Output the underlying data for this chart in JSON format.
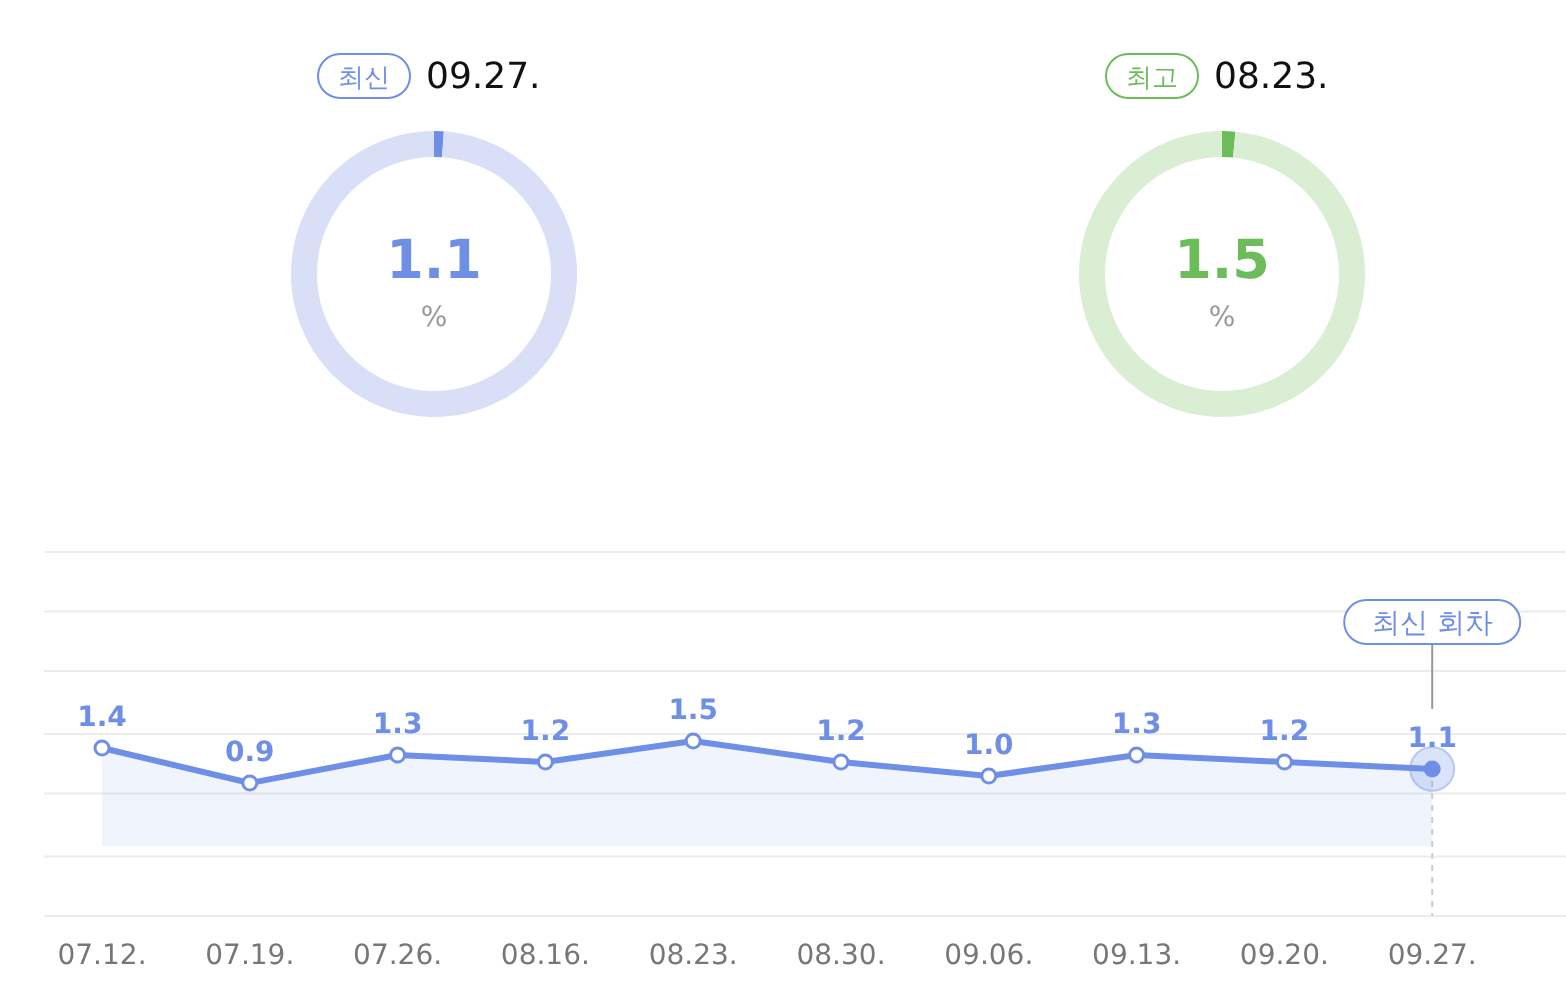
{
  "chart_data": [
    {
      "type": "donut",
      "subtitle": "최신",
      "title": "09.27.",
      "categories": [
        null,
        null
      ],
      "values": [
        1.1,
        98.9
      ],
      "colors": [
        "#6f8fe6",
        "#d8dff7"
      ],
      "value_labels": [
        "1.1",
        null
      ],
      "annotations": [
        "%"
      ]
    },
    {
      "type": "donut",
      "subtitle": "최고",
      "title": "08.23.",
      "categories": [
        null,
        null
      ],
      "values": [
        1.5,
        98.5
      ],
      "colors": [
        "#6cbd5a",
        "#d9eed3"
      ],
      "value_labels": [
        "1.5",
        null
      ],
      "annotations": [
        "%"
      ]
    },
    {
      "type": "area",
      "categories": [
        "07.12.",
        "07.19.",
        "07.26.",
        "08.16.",
        "08.23.",
        "08.30.",
        "09.06.",
        "09.13.",
        "09.20.",
        "09.27."
      ],
      "series": [
        {
          "color": "#6f8fe6",
          "values": [
            1.4,
            0.9,
            1.3,
            1.2,
            1.5,
            1.2,
            1.0,
            1.3,
            1.2,
            1.1
          ],
          "value_labels": [
            "1.4",
            "0.9",
            "1.3",
            "1.2",
            "1.5",
            "1.2",
            "1.0",
            "1.3",
            "1.2",
            "1.1"
          ]
        }
      ],
      "ylim": [
        -1,
        4.2
      ],
      "yticks": [
        {
          "value": -1,
          "label": null
        },
        {
          "value": -0.15,
          "label": null
        },
        {
          "value": 0.75,
          "label": null
        },
        {
          "value": 1.6,
          "label": null
        },
        {
          "value": 2.5,
          "label": null
        },
        {
          "value": 3.35,
          "label": null
        },
        {
          "value": 4.2,
          "label": null
        }
      ],
      "grid": "y",
      "marker": "circle",
      "annotations": [
        "최신 회차"
      ]
    }
  ]
}
